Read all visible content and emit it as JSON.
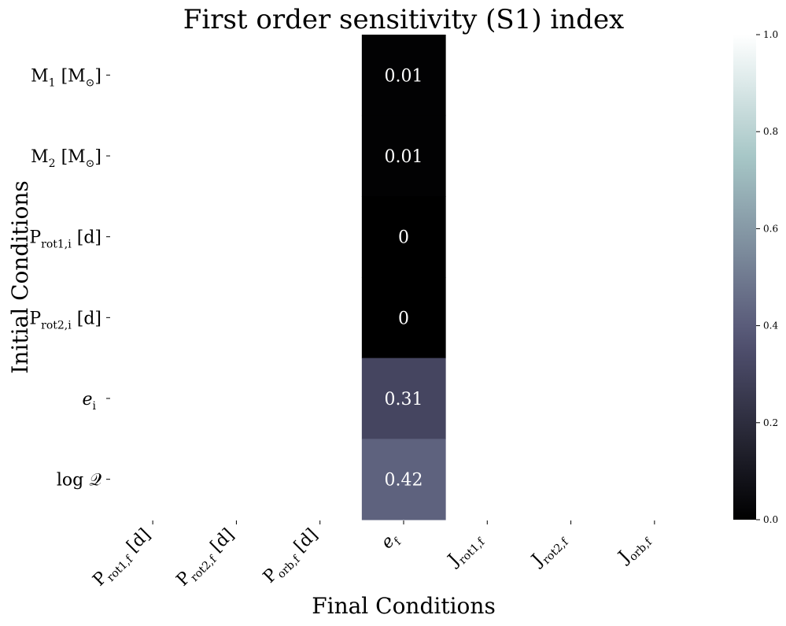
{
  "chart_data": {
    "type": "heatmap",
    "title": "First order sensitivity (S1) index",
    "xlabel": "Final Conditions",
    "ylabel": "Initial Conditions",
    "x_categories": [
      {
        "base": "P",
        "sub": "rot1,f",
        "tail": "[d]"
      },
      {
        "base": "P",
        "sub": "rot2,f",
        "tail": "[d]"
      },
      {
        "base": "P",
        "sub": "orb,f",
        "tail": "[d]"
      },
      {
        "base": "e",
        "sub": "f",
        "tail": "",
        "italic": true
      },
      {
        "base": "J",
        "sub": "rot1,f",
        "tail": ""
      },
      {
        "base": "J",
        "sub": "rot2,f",
        "tail": ""
      },
      {
        "base": "J",
        "sub": "orb,f",
        "tail": ""
      }
    ],
    "y_categories": [
      {
        "base": "M",
        "sub": "1",
        "tail": "[M",
        "tailsub": "⊙",
        "close": "]"
      },
      {
        "base": "M",
        "sub": "2",
        "tail": "[M",
        "tailsub": "⊙",
        "close": "]"
      },
      {
        "base": "P",
        "sub": "rot1,i",
        "tail": "[d]"
      },
      {
        "base": "P",
        "sub": "rot2,i",
        "tail": "[d]"
      },
      {
        "base": "e",
        "sub": "i",
        "tail": "",
        "italic": true
      },
      {
        "base": "log ",
        "sub": "",
        "tail": "𝒬"
      }
    ],
    "values": [
      [
        null,
        null,
        null,
        0.01,
        null,
        null,
        null
      ],
      [
        null,
        null,
        null,
        0.01,
        null,
        null,
        null
      ],
      [
        null,
        null,
        null,
        0,
        null,
        null,
        null
      ],
      [
        null,
        null,
        null,
        0,
        null,
        null,
        null
      ],
      [
        null,
        null,
        null,
        0.31,
        null,
        null,
        null
      ],
      [
        null,
        null,
        null,
        0.42,
        null,
        null,
        null
      ]
    ],
    "annotations": [
      [
        null,
        null,
        null,
        "0.01",
        null,
        null,
        null
      ],
      [
        null,
        null,
        null,
        "0.01",
        null,
        null,
        null
      ],
      [
        null,
        null,
        null,
        "0",
        null,
        null,
        null
      ],
      [
        null,
        null,
        null,
        "0",
        null,
        null,
        null
      ],
      [
        null,
        null,
        null,
        "0.31",
        null,
        null,
        null
      ],
      [
        null,
        null,
        null,
        "0.42",
        null,
        null,
        null
      ]
    ],
    "colormap": "bone",
    "colorbar": {
      "range": [
        0.0,
        1.0
      ],
      "ticks": [
        "0.0",
        "0.2",
        "0.4",
        "0.6",
        "0.8",
        "1.0"
      ],
      "tick_values": [
        0.0,
        0.2,
        0.4,
        0.6,
        0.8,
        1.0
      ]
    },
    "colors": {
      "bone_stops": [
        "#000000",
        "#545474",
        "#a7c7c7",
        "#ffffff"
      ],
      "annotation_text": "#ffffff",
      "text": "#000000"
    },
    "grid": false,
    "legend": "right"
  }
}
